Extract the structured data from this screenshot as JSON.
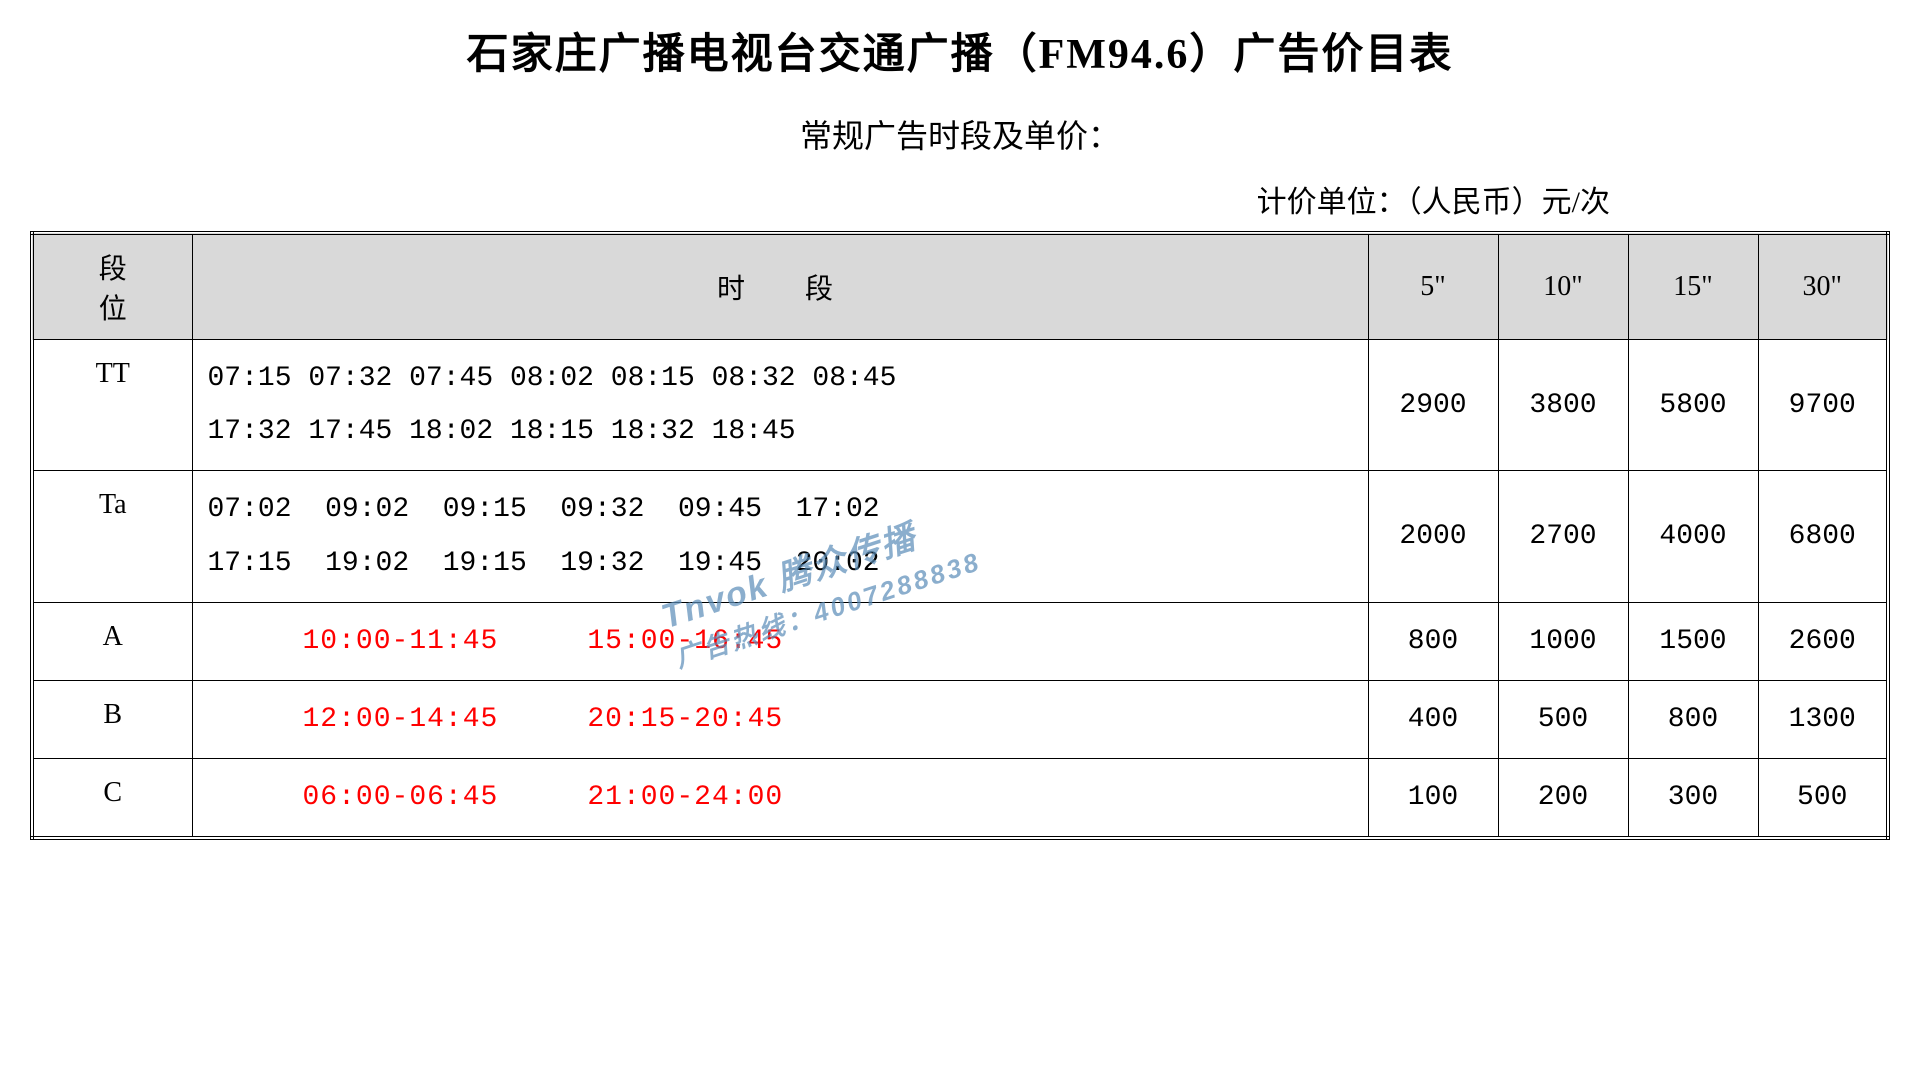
{
  "title": "石家庄广播电视台交通广播（FM94.6）广告价目表",
  "subtitle": "常规广告时段及单价：",
  "unit_label": "计价单位：（人民币）元/次",
  "table": {
    "headers": {
      "segment": "段位",
      "time": "时段",
      "price_5": "5\"",
      "price_10": "10\"",
      "price_15": "15\"",
      "price_30": "30\""
    },
    "rows": [
      {
        "segment": "TT",
        "time": "07:15 07:32 07:45 08:02 08:15 08:32 08:45\n17:32 17:45 18:02 18:15 18:32 18:45",
        "time_color": "#000000",
        "price_5": "2900",
        "price_10": "3800",
        "price_15": "5800",
        "price_30": "9700"
      },
      {
        "segment": "Ta",
        "time": "07:02  09:02  09:15  09:32  09:45  17:02\n17:15  19:02  19:15  19:32  19:45  20:02",
        "time_color": "#000000",
        "price_5": "2000",
        "price_10": "2700",
        "price_15": "4000",
        "price_30": "6800"
      },
      {
        "segment": "A",
        "time": "10:00-11:45     15:00-16:45",
        "time_color": "#ff0000",
        "price_5": "800",
        "price_10": "1000",
        "price_15": "1500",
        "price_30": "2600"
      },
      {
        "segment": "B",
        "time": "12:00-14:45     20:15-20:45",
        "time_color": "#ff0000",
        "price_5": "400",
        "price_10": "500",
        "price_15": "800",
        "price_30": "1300"
      },
      {
        "segment": "C",
        "time": "06:00-06:45     21:00-24:00",
        "time_color": "#ff0000",
        "price_5": "100",
        "price_10": "200",
        "price_15": "300",
        "price_30": "500"
      }
    ]
  },
  "watermark": {
    "line1": "Tnvok 腾众传播",
    "line2": "广告热线：4007288838"
  },
  "colors": {
    "header_bg": "#d9d9d9",
    "border": "#000000",
    "text": "#000000",
    "red_text": "#ff0000",
    "watermark": "#5b8db8",
    "background": "#ffffff"
  }
}
